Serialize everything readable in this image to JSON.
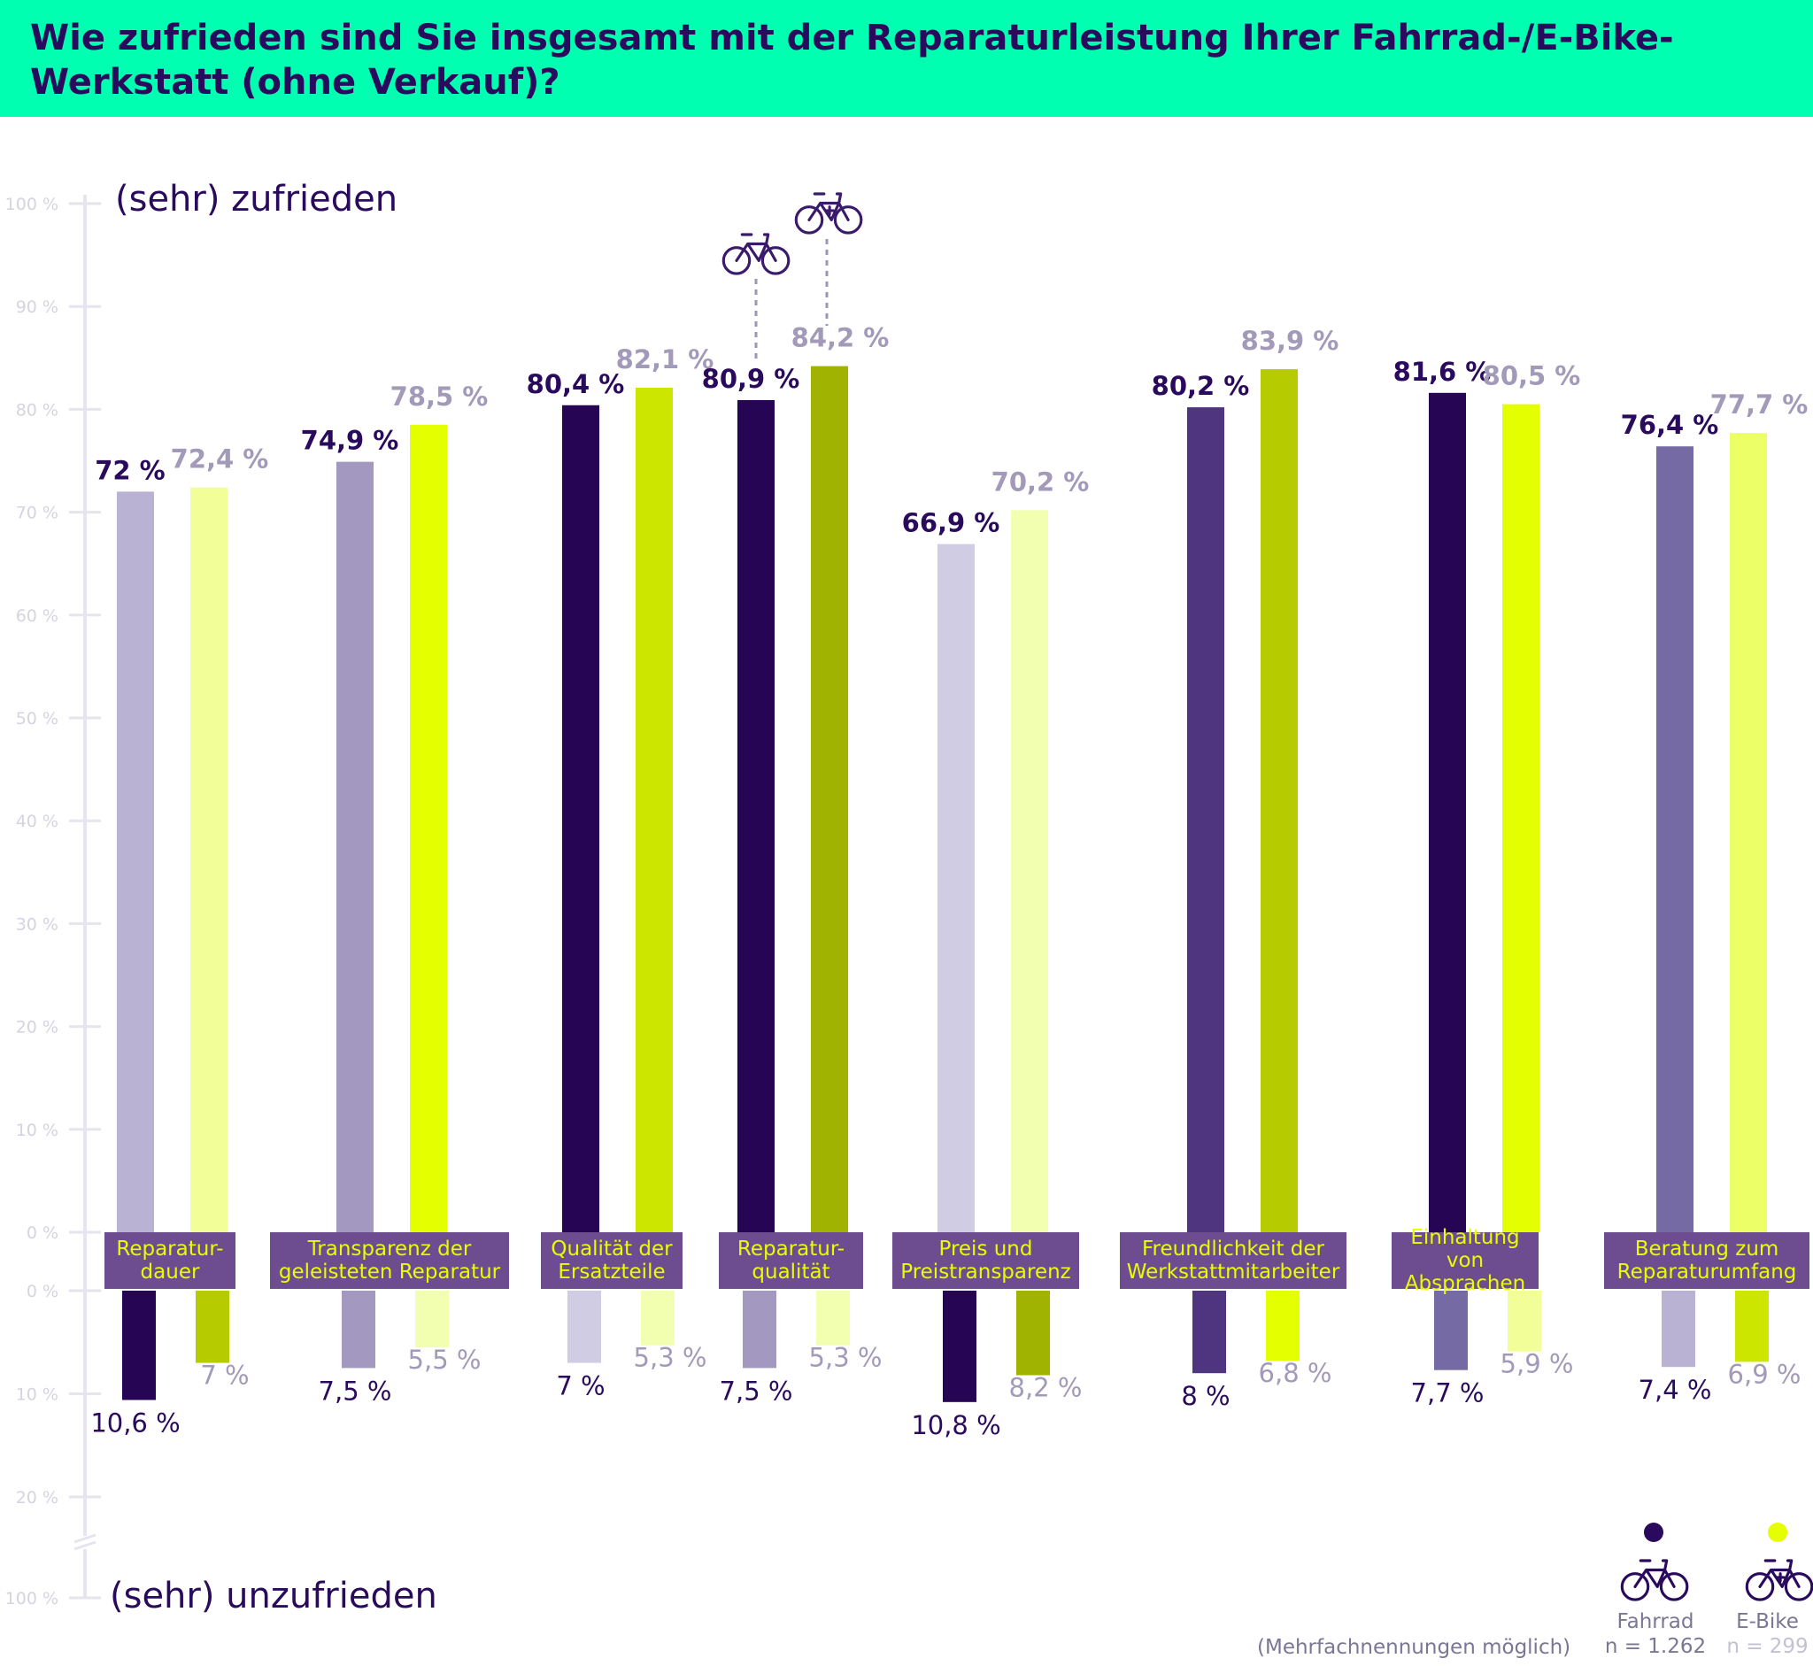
{
  "header": {
    "title": "Wie zufrieden sind Sie insgesamt mit der Reparaturleistung Ihrer Fahrrad-/E-Bike-Werkstatt (ohne Verkauf)?"
  },
  "colors": {
    "header_bg": "#00ffb0",
    "title": "#2a0a5c",
    "label_bg": "#6d4c8f",
    "label_text": "#e6ff00",
    "fahrrad_value_text": "#2a0a5c",
    "ebike_value_text": "#a29ab8",
    "axis": "#e6e4ee"
  },
  "chart_data": {
    "type": "bar",
    "top_axis_label": "(sehr) zufrieden",
    "bottom_axis_label": "(sehr) unzufrieden",
    "upper_ticks": [
      "0 %",
      "10 %",
      "20 %",
      "30 %",
      "40 %",
      "50 %",
      "60 %",
      "70 %",
      "80 %",
      "90 %",
      "100 %"
    ],
    "lower_ticks": [
      "0 %",
      "10 %",
      "20 %",
      "100 %"
    ],
    "ylim_satisfied": [
      0,
      100
    ],
    "categories": [
      "Reparatur-\ndauer",
      "Transparenz der\ngeleisteten Reparatur",
      "Qualität der\nErsatzteile",
      "Reparatur-\nqualität",
      "Preis und\nPreistransparenz",
      "Freundlichkeit der\nWerkstattmitarbeiter",
      "Einhaltung von\nAbsprachen",
      "Beratung zum\nReparaturumfang"
    ],
    "series": [
      {
        "name": "Fahrrad",
        "sample": "n = 1.262",
        "satisfied": [
          72,
          74.9,
          80.4,
          80.9,
          66.9,
          80.2,
          81.6,
          76.4
        ],
        "satisfied_labels": [
          "72 %",
          "74,9 %",
          "80,4 %",
          "80,9 %",
          "66,9 %",
          "80,2 %",
          "81,6 %",
          "76,4 %"
        ],
        "dissatisfied": [
          10.6,
          7.5,
          7,
          7.5,
          10.8,
          8,
          7.7,
          7.4
        ],
        "dissatisfied_labels": [
          "10,6 %",
          "7,5 %",
          "7 %",
          "7,5 %",
          "10,8 %",
          "8 %",
          "7,7 %",
          "7,4 %"
        ],
        "colors_satisfied": [
          "#b9b2d3",
          "#a398c0",
          "#260654",
          "#260654",
          "#d0cce3",
          "#4f357f",
          "#260654",
          "#756aa3"
        ],
        "colors_dissatisfied": [
          "#260654",
          "#a398c0",
          "#d0cce3",
          "#a398c0",
          "#260654",
          "#4f357f",
          "#756aa3",
          "#b9b2d3"
        ]
      },
      {
        "name": "E-Bike",
        "sample": "n = 299",
        "satisfied": [
          72.4,
          78.5,
          82.1,
          84.2,
          70.2,
          83.9,
          80.5,
          77.7
        ],
        "satisfied_labels": [
          "72,4 %",
          "78,5 %",
          "82,1 %",
          "84,2 %",
          "70,2 %",
          "83,9 %",
          "80,5 %",
          "77,7 %"
        ],
        "dissatisfied": [
          7,
          5.5,
          5.3,
          5.3,
          8.2,
          6.8,
          5.9,
          6.9
        ],
        "dissatisfied_labels": [
          "7 %",
          "5,5 %",
          "5,3 %",
          "5,3 %",
          "8,2 %",
          "6,8 %",
          "5,9 %",
          "6,9 %"
        ],
        "colors_satisfied": [
          "#f2ff99",
          "#e3ff00",
          "#cce600",
          "#9fb300",
          "#f2ffb0",
          "#b6cc00",
          "#e3ff00",
          "#ecff66"
        ],
        "colors_dissatisfied": [
          "#b6cc00",
          "#f2ffb0",
          "#f2ffb0",
          "#f2ffb0",
          "#9fb300",
          "#e3ff00",
          "#f2ff99",
          "#cce600"
        ]
      }
    ],
    "highlight_category_index": 3
  },
  "legend": {
    "fahrrad_label": "Fahrrad",
    "fahrrad_n": "n = 1.262",
    "ebike_label": "E-Bike",
    "ebike_n": "n = 299",
    "fahrrad_icon": "bicycle-icon",
    "ebike_icon": "ebike-icon"
  },
  "footnote": "(Mehrfachnennungen möglich)"
}
